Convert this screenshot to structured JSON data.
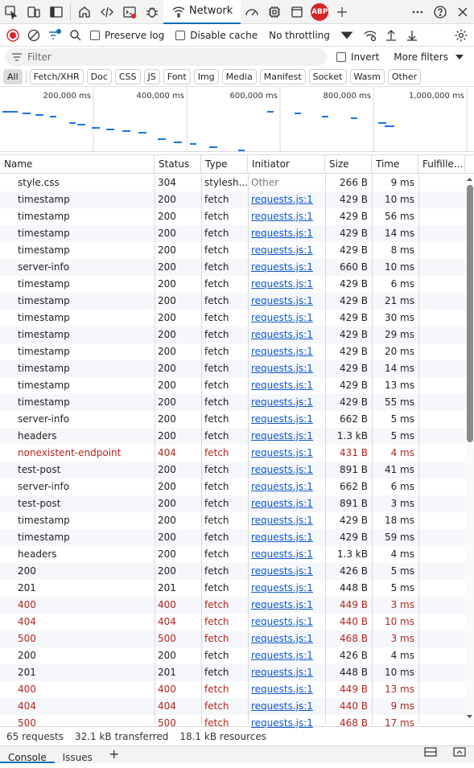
{
  "top_toolbar": {
    "network_tab_label": "Network",
    "abp_label": "ABP",
    "icons": [
      "inspect-icon",
      "device-emulation-icon",
      "dock-icon",
      "welcome-icon",
      "elements-icon",
      "console-icon",
      "sources-icon",
      "network-icon",
      "performance-icon",
      "memory-icon",
      "application-icon",
      "adblock-icon",
      "more-tools-icon",
      "overflow-icon",
      "help-icon",
      "close-icon"
    ]
  },
  "net_toolbar": {
    "preserve_log": "Preserve log",
    "disable_cache": "Disable cache",
    "throttling": "No throttling"
  },
  "filter": {
    "placeholder": "Filter",
    "invert": "Invert",
    "more_filters": "More filters"
  },
  "type_filters": [
    "All",
    "Fetch/XHR",
    "Doc",
    "CSS",
    "JS",
    "Font",
    "Img",
    "Media",
    "Manifest",
    "Socket",
    "Wasm",
    "Other"
  ],
  "overview": {
    "ticks": [
      "200,000 ms",
      "400,000 ms",
      "600,000 ms",
      "800,000 ms",
      "1,000,000 ms"
    ],
    "bar_color": "#1a73e8"
  },
  "table": {
    "columns": [
      "Name",
      "Status",
      "Type",
      "Initiator",
      "Size",
      "Time",
      "Fulfille..."
    ],
    "rows": [
      {
        "name": "style.css",
        "status": "304",
        "type": "stylesh...",
        "initiator": "Other",
        "size": "266 B",
        "time": "9 ms"
      },
      {
        "name": "timestamp",
        "status": "200",
        "type": "fetch",
        "initiator": "requests.js:1",
        "size": "429 B",
        "time": "10 ms"
      },
      {
        "name": "timestamp",
        "status": "200",
        "type": "fetch",
        "initiator": "requests.js:1",
        "size": "429 B",
        "time": "56 ms"
      },
      {
        "name": "timestamp",
        "status": "200",
        "type": "fetch",
        "initiator": "requests.js:1",
        "size": "429 B",
        "time": "14 ms"
      },
      {
        "name": "timestamp",
        "status": "200",
        "type": "fetch",
        "initiator": "requests.js:1",
        "size": "429 B",
        "time": "8 ms"
      },
      {
        "name": "server-info",
        "status": "200",
        "type": "fetch",
        "initiator": "requests.js:1",
        "size": "660 B",
        "time": "10 ms"
      },
      {
        "name": "timestamp",
        "status": "200",
        "type": "fetch",
        "initiator": "requests.js:1",
        "size": "429 B",
        "time": "6 ms"
      },
      {
        "name": "timestamp",
        "status": "200",
        "type": "fetch",
        "initiator": "requests.js:1",
        "size": "429 B",
        "time": "21 ms"
      },
      {
        "name": "timestamp",
        "status": "200",
        "type": "fetch",
        "initiator": "requests.js:1",
        "size": "429 B",
        "time": "30 ms"
      },
      {
        "name": "timestamp",
        "status": "200",
        "type": "fetch",
        "initiator": "requests.js:1",
        "size": "429 B",
        "time": "29 ms"
      },
      {
        "name": "timestamp",
        "status": "200",
        "type": "fetch",
        "initiator": "requests.js:1",
        "size": "429 B",
        "time": "20 ms"
      },
      {
        "name": "timestamp",
        "status": "200",
        "type": "fetch",
        "initiator": "requests.js:1",
        "size": "429 B",
        "time": "14 ms"
      },
      {
        "name": "timestamp",
        "status": "200",
        "type": "fetch",
        "initiator": "requests.js:1",
        "size": "429 B",
        "time": "13 ms"
      },
      {
        "name": "timestamp",
        "status": "200",
        "type": "fetch",
        "initiator": "requests.js:1",
        "size": "429 B",
        "time": "55 ms"
      },
      {
        "name": "server-info",
        "status": "200",
        "type": "fetch",
        "initiator": "requests.js:1",
        "size": "662 B",
        "time": "5 ms"
      },
      {
        "name": "headers",
        "status": "200",
        "type": "fetch",
        "initiator": "requests.js:1",
        "size": "1.3 kB",
        "time": "5 ms"
      },
      {
        "name": "nonexistent-endpoint",
        "status": "404",
        "type": "fetch",
        "initiator": "requests.js:1",
        "size": "431 B",
        "time": "4 ms",
        "error": true
      },
      {
        "name": "test-post",
        "status": "200",
        "type": "fetch",
        "initiator": "requests.js:1",
        "size": "891 B",
        "time": "41 ms"
      },
      {
        "name": "server-info",
        "status": "200",
        "type": "fetch",
        "initiator": "requests.js:1",
        "size": "662 B",
        "time": "6 ms"
      },
      {
        "name": "test-post",
        "status": "200",
        "type": "fetch",
        "initiator": "requests.js:1",
        "size": "891 B",
        "time": "3 ms"
      },
      {
        "name": "timestamp",
        "status": "200",
        "type": "fetch",
        "initiator": "requests.js:1",
        "size": "429 B",
        "time": "18 ms"
      },
      {
        "name": "timestamp",
        "status": "200",
        "type": "fetch",
        "initiator": "requests.js:1",
        "size": "429 B",
        "time": "59 ms"
      },
      {
        "name": "headers",
        "status": "200",
        "type": "fetch",
        "initiator": "requests.js:1",
        "size": "1.3 kB",
        "time": "4 ms"
      },
      {
        "name": "200",
        "status": "200",
        "type": "fetch",
        "initiator": "requests.js:1",
        "size": "426 B",
        "time": "5 ms"
      },
      {
        "name": "201",
        "status": "201",
        "type": "fetch",
        "initiator": "requests.js:1",
        "size": "448 B",
        "time": "5 ms"
      },
      {
        "name": "400",
        "status": "400",
        "type": "fetch",
        "initiator": "requests.js:1",
        "size": "449 B",
        "time": "3 ms",
        "error": true
      },
      {
        "name": "404",
        "status": "404",
        "type": "fetch",
        "initiator": "requests.js:1",
        "size": "440 B",
        "time": "10 ms",
        "error": true
      },
      {
        "name": "500",
        "status": "500",
        "type": "fetch",
        "initiator": "requests.js:1",
        "size": "468 B",
        "time": "3 ms",
        "error": true
      },
      {
        "name": "200",
        "status": "200",
        "type": "fetch",
        "initiator": "requests.js:1",
        "size": "426 B",
        "time": "4 ms"
      },
      {
        "name": "201",
        "status": "201",
        "type": "fetch",
        "initiator": "requests.js:1",
        "size": "448 B",
        "time": "10 ms"
      },
      {
        "name": "400",
        "status": "400",
        "type": "fetch",
        "initiator": "requests.js:1",
        "size": "449 B",
        "time": "13 ms",
        "error": true
      },
      {
        "name": "404",
        "status": "404",
        "type": "fetch",
        "initiator": "requests.js:1",
        "size": "440 B",
        "time": "9 ms",
        "error": true
      },
      {
        "name": "500",
        "status": "500",
        "type": "fetch",
        "initiator": "requests.js:1",
        "size": "468 B",
        "time": "17 ms",
        "error": true
      }
    ]
  },
  "status_bar": {
    "requests": "65 requests",
    "transferred": "32.1 kB transferred",
    "resources": "18.1 kB resources"
  },
  "drawer": {
    "tabs": [
      "Console",
      "Issues"
    ]
  },
  "colors": {
    "accent": "#0f6cbd",
    "error_text": "#b3261e",
    "link": "#0b57d0"
  }
}
